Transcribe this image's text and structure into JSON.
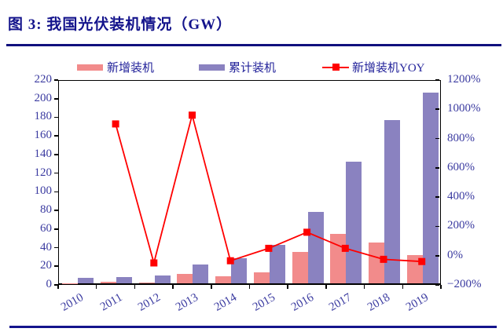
{
  "figure": {
    "title": "图 3: 我国光伏装机情况（GW）",
    "accent_color": "#14148c"
  },
  "legend": [
    {
      "label": "新增装机",
      "type": "bar",
      "color": "#f28b8b"
    },
    {
      "label": "累计装机",
      "type": "bar",
      "color": "#8a82c0"
    },
    {
      "label": "新增装机YOY",
      "type": "line",
      "color": "#ff0000"
    }
  ],
  "chart_data": {
    "type": "bar",
    "subtype": "grouped bars + line on secondary axis",
    "title": "图 3: 我国光伏装机情况（GW）",
    "categories": [
      "2010",
      "2011",
      "2012",
      "2013",
      "2014",
      "2015",
      "2016",
      "2017",
      "2018",
      "2019"
    ],
    "series": [
      {
        "name": "新增装机",
        "type": "bar",
        "axis": "left",
        "unit": "GW",
        "color": "#f28b8b",
        "values": [
          0.2,
          1.5,
          1.0,
          10.5,
          7.5,
          12,
          34,
          53,
          44,
          30.5
        ]
      },
      {
        "name": "累计装机",
        "type": "bar",
        "axis": "left",
        "unit": "GW",
        "color": "#8a82c0",
        "values": [
          5.5,
          7,
          8.5,
          20,
          27,
          41.5,
          77,
          131,
          175,
          205
        ]
      },
      {
        "name": "新增装机YOY",
        "type": "line",
        "axis": "right",
        "unit": "%",
        "color": "#ff0000",
        "marker": "square",
        "values": [
          null,
          900,
          -50,
          960,
          -35,
          50,
          160,
          50,
          -25,
          -40
        ]
      }
    ],
    "left_axis": {
      "min": 0,
      "max": 220,
      "step": 20,
      "tick_labels": [
        "0",
        "20",
        "40",
        "60",
        "80",
        "100",
        "120",
        "140",
        "160",
        "180",
        "200",
        "220"
      ]
    },
    "right_axis": {
      "min": -200,
      "max": 1200,
      "step": 200,
      "tick_labels": [
        "−200%",
        "0%",
        "200%",
        "400%",
        "600%",
        "800%",
        "1000%",
        "1200%"
      ]
    },
    "grid": false,
    "legend_position": "top",
    "xlabel": "",
    "ylabel": ""
  }
}
